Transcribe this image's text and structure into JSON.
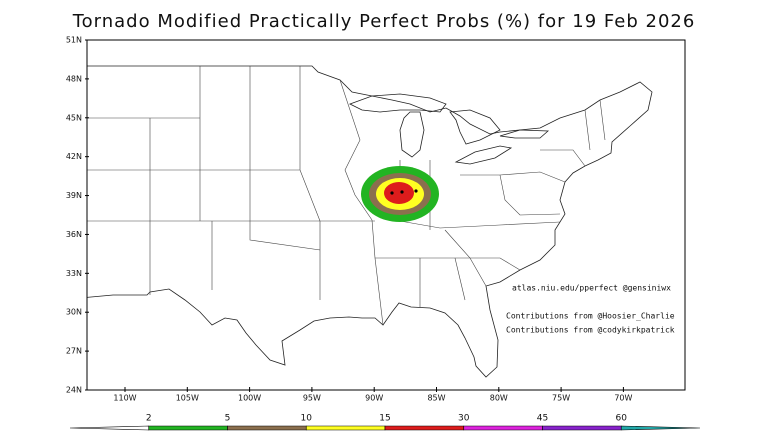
{
  "title": "Tornado Modified Practically Perfect Probs (%) for 19 Feb 2026",
  "map": {
    "lat_labels": [
      "51N",
      "48N",
      "45N",
      "42N",
      "39N",
      "36N",
      "33N",
      "30N",
      "27N",
      "24N"
    ],
    "lon_labels": [
      "110W",
      "105W",
      "100W",
      "95W",
      "90W",
      "85W",
      "80W",
      "75W",
      "70W"
    ],
    "credits": [
      "atlas.niu.edu/pperfect @gensiniwx",
      "Contributions from @Hoosier_Charlie",
      "Contributions from @codykirkpatrick"
    ]
  },
  "colorbar": {
    "labels": [
      "2",
      "5",
      "10",
      "15",
      "30",
      "45",
      "60"
    ],
    "colors": [
      "#ffffff",
      "#22b422",
      "#8b6f4e",
      "#ffff22",
      "#dd1c1c",
      "#dd22dd",
      "#8822cc",
      "#22aaaa"
    ]
  }
}
